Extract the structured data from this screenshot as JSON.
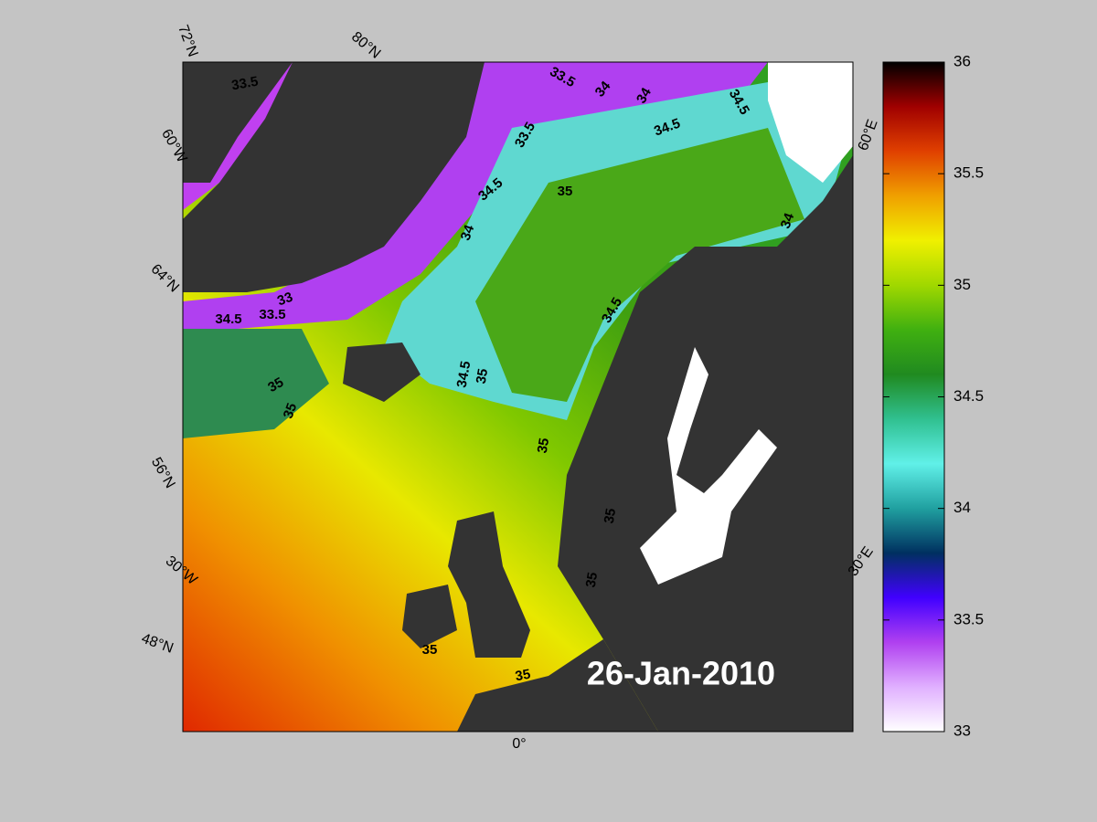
{
  "map": {
    "date": "26-Jan-2010",
    "graticule_labels": [
      "72°N",
      "80°N",
      "60°W",
      "64°N",
      "56°N",
      "30°W",
      "48°N",
      "0°",
      "60°E",
      "30°E"
    ],
    "contour_labels": [
      "33.5",
      "33.5",
      "34",
      "34",
      "34.5",
      "33.5",
      "34.5",
      "35",
      "34.5",
      "34",
      "34",
      "33",
      "34.5",
      "33.5",
      "34.5",
      "34.5",
      "35",
      "35",
      "35",
      "35",
      "35",
      "35",
      "35",
      "35"
    ]
  },
  "colorbar": {
    "lim": [
      33,
      36
    ],
    "ticks": [
      33,
      33.5,
      34,
      34.5,
      35,
      35.5,
      36
    ],
    "colors": [
      "#ffffff",
      "#e0b0ff",
      "#b040f0",
      "#4000ff",
      "#003060",
      "#20a0a0",
      "#60f0e8",
      "#30c090",
      "#208a20",
      "#40b010",
      "#a0d800",
      "#f0f000",
      "#f0a000",
      "#e04000",
      "#a00000",
      "#000000"
    ]
  }
}
